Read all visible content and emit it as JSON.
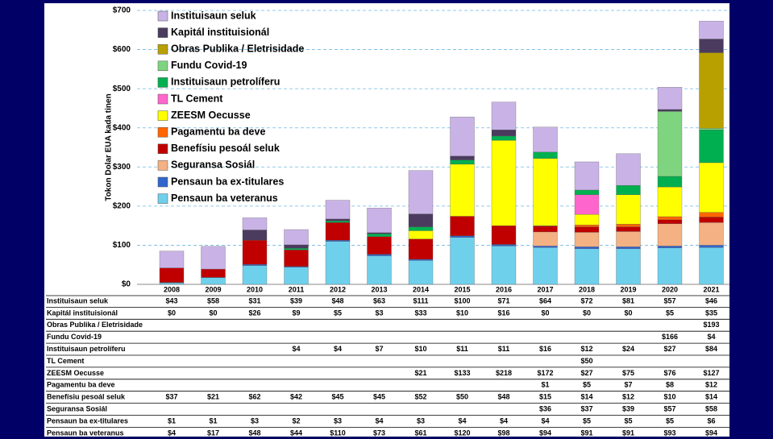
{
  "chart_data": {
    "type": "stacked_bar",
    "y_label": "Tokon Dolar EUA kada tinen",
    "categories": [
      "2008",
      "2009",
      "2010",
      "2011",
      "2012",
      "2013",
      "2014",
      "2015",
      "2016",
      "2017",
      "2018",
      "2019",
      "2020",
      "2021"
    ],
    "ylim": [
      0,
      700
    ],
    "yticks": [
      {
        "value": 0,
        "label": "$0"
      },
      {
        "value": 100,
        "label": "$100"
      },
      {
        "value": 200,
        "label": "$200"
      },
      {
        "value": 300,
        "label": "$300"
      },
      {
        "value": 400,
        "label": "$400"
      },
      {
        "value": 500,
        "label": "$500"
      },
      {
        "value": 600,
        "label": "$600"
      },
      {
        "value": 700,
        "label": "$700"
      }
    ],
    "grid": true,
    "legend": "top-left",
    "series": [
      {
        "name": "Instituisaun seluk",
        "color": "#c9b3e6",
        "values": [
          43,
          58,
          31,
          39,
          48,
          63,
          111,
          100,
          71,
          64,
          72,
          81,
          57,
          46
        ],
        "value_labels": [
          "$43",
          "$58",
          "$31",
          "$39",
          "$48",
          "$63",
          "$111",
          "$100",
          "$71",
          "$64",
          "$72",
          "$81",
          "$57",
          "$46"
        ]
      },
      {
        "name": "Kapitál instituisionál",
        "color": "#4b3b5e",
        "values": [
          0,
          0,
          26,
          9,
          5,
          3,
          33,
          10,
          16,
          0,
          0,
          0,
          5,
          35
        ],
        "value_labels": [
          "$0",
          "$0",
          "$26",
          "$9",
          "$5",
          "$3",
          "$33",
          "$10",
          "$16",
          "$0",
          "$0",
          "$0",
          "$5",
          "$35"
        ]
      },
      {
        "name": "Obras Publika / Eletrisidade",
        "color": "#b8a000",
        "values": [
          null,
          null,
          null,
          null,
          null,
          null,
          null,
          null,
          null,
          null,
          null,
          null,
          null,
          193
        ],
        "value_labels": [
          null,
          null,
          null,
          null,
          null,
          null,
          null,
          null,
          null,
          null,
          null,
          null,
          null,
          "$193"
        ]
      },
      {
        "name": "Fundu Covid-19",
        "color": "#7fd47f",
        "values": [
          null,
          null,
          null,
          null,
          null,
          null,
          null,
          null,
          null,
          null,
          null,
          null,
          166,
          4
        ],
        "value_labels": [
          null,
          null,
          null,
          null,
          null,
          null,
          null,
          null,
          null,
          null,
          null,
          null,
          "$166",
          "$4"
        ]
      },
      {
        "name": "Instituisaun petrolíferu",
        "color": "#00b050",
        "values": [
          null,
          null,
          null,
          4,
          4,
          7,
          10,
          11,
          11,
          16,
          12,
          24,
          27,
          84
        ],
        "value_labels": [
          null,
          null,
          null,
          "$4",
          "$4",
          "$7",
          "$10",
          "$11",
          "$11",
          "$16",
          "$12",
          "$24",
          "$27",
          "$84"
        ]
      },
      {
        "name": "TL Cement",
        "color": "#ff66cc",
        "values": [
          null,
          null,
          null,
          null,
          null,
          null,
          null,
          null,
          null,
          null,
          50,
          null,
          null,
          null
        ],
        "value_labels": [
          null,
          null,
          null,
          null,
          null,
          null,
          null,
          null,
          null,
          null,
          "$50",
          null,
          null,
          null
        ]
      },
      {
        "name": "ZEESM Oecusse",
        "color": "#ffff00",
        "values": [
          null,
          null,
          null,
          null,
          null,
          null,
          21,
          133,
          218,
          172,
          27,
          75,
          76,
          127
        ],
        "value_labels": [
          null,
          null,
          null,
          null,
          null,
          null,
          "$21",
          "$133",
          "$218",
          "$172",
          "$27",
          "$75",
          "$76",
          "$127"
        ]
      },
      {
        "name": "Pagamentu ba deve",
        "color": "#ff6600",
        "values": [
          null,
          null,
          null,
          null,
          null,
          null,
          null,
          null,
          null,
          1,
          5,
          7,
          8,
          12
        ],
        "value_labels": [
          null,
          null,
          null,
          null,
          null,
          null,
          null,
          null,
          null,
          "$1",
          "$5",
          "$7",
          "$8",
          "$12"
        ]
      },
      {
        "name": "Benefísiu pesoál seluk",
        "color": "#c00000",
        "values": [
          37,
          21,
          62,
          42,
          45,
          45,
          52,
          50,
          48,
          15,
          14,
          12,
          10,
          14
        ],
        "value_labels": [
          "$37",
          "$21",
          "$62",
          "$42",
          "$45",
          "$45",
          "$52",
          "$50",
          "$48",
          "$15",
          "$14",
          "$12",
          "$10",
          "$14"
        ]
      },
      {
        "name": "Seguransa Sosiál",
        "color": "#f4b183",
        "values": [
          null,
          null,
          null,
          null,
          null,
          null,
          null,
          null,
          null,
          36,
          37,
          39,
          57,
          58
        ],
        "value_labels": [
          null,
          null,
          null,
          null,
          null,
          null,
          null,
          null,
          null,
          "$36",
          "$37",
          "$39",
          "$57",
          "$58"
        ]
      },
      {
        "name": "Pensaun ba ex-titulares",
        "color": "#3366cc",
        "values": [
          1,
          1,
          3,
          2,
          3,
          4,
          3,
          4,
          4,
          4,
          5,
          5,
          5,
          6
        ],
        "value_labels": [
          "$1",
          "$1",
          "$3",
          "$2",
          "$3",
          "$4",
          "$3",
          "$4",
          "$4",
          "$4",
          "$5",
          "$5",
          "$5",
          "$6"
        ]
      },
      {
        "name": "Pensaun ba veteranus",
        "color": "#6fd0ec",
        "values": [
          4,
          17,
          48,
          44,
          110,
          73,
          61,
          120,
          98,
          94,
          91,
          91,
          93,
          94
        ],
        "value_labels": [
          "$4",
          "$17",
          "$48",
          "$44",
          "$110",
          "$73",
          "$61",
          "$120",
          "$98",
          "$94",
          "$91",
          "$91",
          "$93",
          "$94"
        ]
      }
    ]
  }
}
